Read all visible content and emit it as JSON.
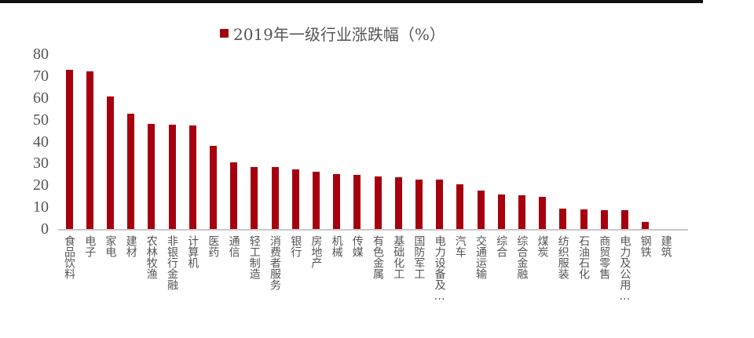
{
  "chart_data": {
    "type": "bar",
    "title": "",
    "legend": [
      "2019年一级行业涨跌幅（%）"
    ],
    "legend_position": "top",
    "xlabel": "",
    "ylabel": "",
    "ylim": [
      0,
      80
    ],
    "yticks": [
      "80",
      "70",
      "60",
      "50",
      "40",
      "30",
      "20",
      "10",
      "0"
    ],
    "grid": false,
    "color": "#a6000f",
    "categories": [
      "食品饮料",
      "电子",
      "家电",
      "建材",
      "农林牧渔",
      "非银行金融",
      "计算机",
      "医药",
      "通信",
      "轻工制造",
      "消费者服务",
      "银行",
      "房地产",
      "机械",
      "传媒",
      "有色金属",
      "基础化工",
      "国防军工",
      "电力设备及…",
      "汽车",
      "交通运输",
      "综合",
      "综合金融",
      "煤炭",
      "纺织服装",
      "石油石化",
      "商贸零售",
      "电力及公用…",
      "钢铁",
      "建筑"
    ],
    "series": [
      {
        "name": "2019年一级行业涨跌幅（%）",
        "values": [
          72.8,
          72.0,
          60.6,
          52.7,
          48.0,
          47.7,
          47.3,
          38.0,
          30.5,
          28.3,
          28.3,
          27.2,
          26.2,
          25.1,
          24.7,
          24.0,
          23.7,
          22.6,
          22.6,
          20.4,
          17.6,
          15.8,
          15.4,
          14.7,
          9.3,
          9.0,
          8.6,
          8.6,
          3.2,
          0.0
        ]
      }
    ]
  }
}
